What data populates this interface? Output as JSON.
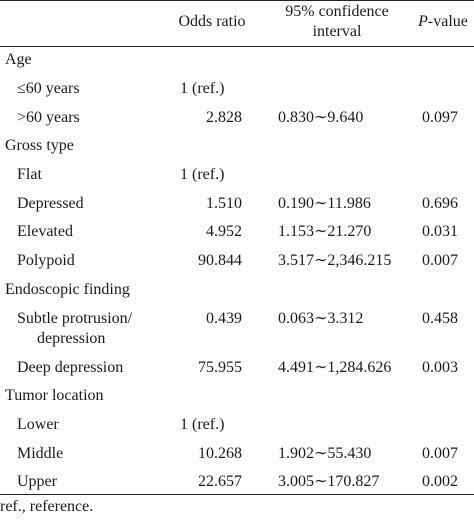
{
  "header": {
    "odds": "Odds ratio",
    "ci_line1": "95% confidence",
    "ci_line2": "interval",
    "p_italic": "P",
    "p_rest": "-value"
  },
  "sections": [
    {
      "label": "Age",
      "rows": [
        {
          "label": "≤60 years",
          "odds": "1 (ref.)",
          "ci": "",
          "p": ""
        },
        {
          "label": ">60 years",
          "odds": "2.828",
          "ci": "0.830∼9.640",
          "p": "0.097"
        }
      ]
    },
    {
      "label": "Gross type",
      "rows": [
        {
          "label": "Flat",
          "odds": "1 (ref.)",
          "ci": "",
          "p": ""
        },
        {
          "label": "Depressed",
          "odds": "1.510",
          "ci": "0.190∼11.986",
          "p": "0.696"
        },
        {
          "label": "Elevated",
          "odds": "4.952",
          "ci": "1.153∼21.270",
          "p": "0.031"
        },
        {
          "label": "Polypoid",
          "odds": "90.844",
          "ci": "3.517∼2,346.215",
          "p": "0.007"
        }
      ]
    },
    {
      "label": "Endoscopic finding",
      "rows": [
        {
          "label": "Subtle protrusion/",
          "label2": "depression",
          "odds": "0.439",
          "ci": "0.063∼3.312",
          "p": "0.458"
        },
        {
          "label": "Deep depression",
          "odds": "75.955",
          "ci": "4.491∼1,284.626",
          "p": "0.003"
        }
      ]
    },
    {
      "label": "Tumor location",
      "rows": [
        {
          "label": "Lower",
          "odds": "1 (ref.)",
          "ci": "",
          "p": ""
        },
        {
          "label": "Middle",
          "odds": "10.268",
          "ci": "1.902∼55.430",
          "p": "0.007"
        },
        {
          "label": "Upper",
          "odds": "22.657",
          "ci": "3.005∼170.827",
          "p": "0.002"
        }
      ]
    }
  ],
  "footnote": "ref., reference."
}
